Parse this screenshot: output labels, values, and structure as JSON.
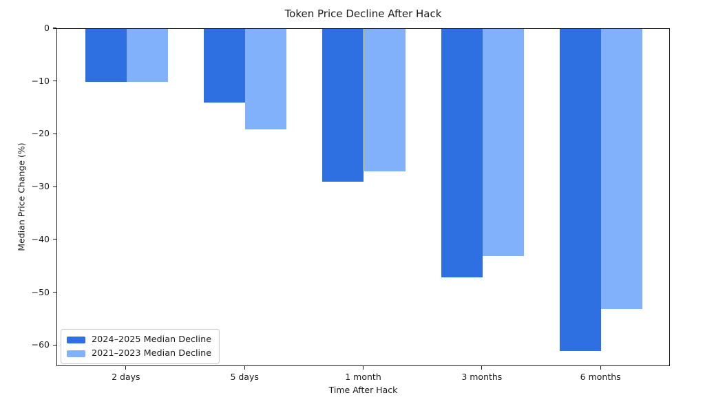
{
  "figure": {
    "title": "Token Price Decline After Hack",
    "xlabel": "Time After Hack",
    "ylabel": "Median Price Change (%)"
  },
  "chart_data": {
    "type": "bar",
    "title": "Token Price Decline After Hack",
    "xlabel": "Time After Hack",
    "ylabel": "Median Price Change (%)",
    "categories": [
      "2 days",
      "5 days",
      "1 month",
      "3 months",
      "6 months"
    ],
    "series": [
      {
        "name": "2024–2025 Median Decline",
        "color": "#2e6fe2",
        "values": [
          -10,
          -14,
          -29,
          -47,
          -61
        ]
      },
      {
        "name": "2021–2023 Median Decline",
        "color": "#80b1fa",
        "values": [
          -10,
          -19,
          -27,
          -43,
          -53
        ]
      }
    ],
    "bar_width": 0.35,
    "ylim": [
      -64,
      0
    ],
    "yticks": [
      0,
      -10,
      -20,
      -30,
      -40,
      -50,
      -60
    ],
    "ytick_labels": [
      "0",
      "−10",
      "−20",
      "−30",
      "−40",
      "−50",
      "−60"
    ],
    "grid": false,
    "legend_position": "lower left"
  }
}
